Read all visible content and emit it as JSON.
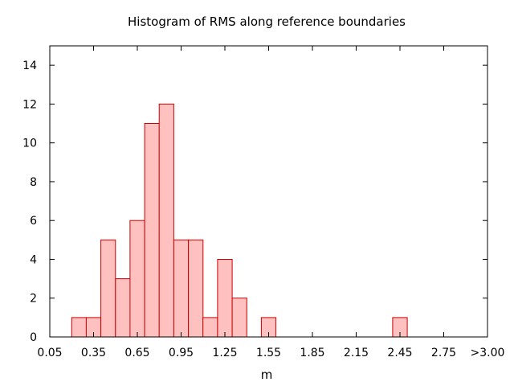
{
  "chart_data": {
    "type": "bar",
    "title": "Histogram of RMS along reference boundaries",
    "xlabel": "m",
    "ylabel": "",
    "bin_width": 0.1,
    "xlim": [
      0.05,
      3.05
    ],
    "ylim": [
      0,
      15
    ],
    "grid": false,
    "legend": "none",
    "x_tick_labels": [
      "0.05",
      "0.35",
      "0.65",
      "0.95",
      "1.25",
      "1.55",
      "1.85",
      "2.15",
      "2.45",
      "2.75",
      ">3.00"
    ],
    "x_tick_values": [
      0.05,
      0.35,
      0.65,
      0.95,
      1.25,
      1.55,
      1.85,
      2.15,
      2.45,
      2.75,
      3.05
    ],
    "y_ticks": [
      0,
      2,
      4,
      6,
      8,
      10,
      12,
      14
    ],
    "bins": [
      {
        "x": 0.25,
        "value": 1
      },
      {
        "x": 0.35,
        "value": 1
      },
      {
        "x": 0.45,
        "value": 5
      },
      {
        "x": 0.55,
        "value": 3
      },
      {
        "x": 0.65,
        "value": 6
      },
      {
        "x": 0.75,
        "value": 11
      },
      {
        "x": 0.85,
        "value": 12
      },
      {
        "x": 0.95,
        "value": 5
      },
      {
        "x": 1.05,
        "value": 5
      },
      {
        "x": 1.15,
        "value": 1
      },
      {
        "x": 1.25,
        "value": 4
      },
      {
        "x": 1.35,
        "value": 2
      },
      {
        "x": 1.55,
        "value": 1
      },
      {
        "x": 2.45,
        "value": 1
      }
    ],
    "colors": {
      "bar_fill": "#ffc0c0",
      "bar_stroke": "#cc0000",
      "axis": "#000000"
    }
  }
}
